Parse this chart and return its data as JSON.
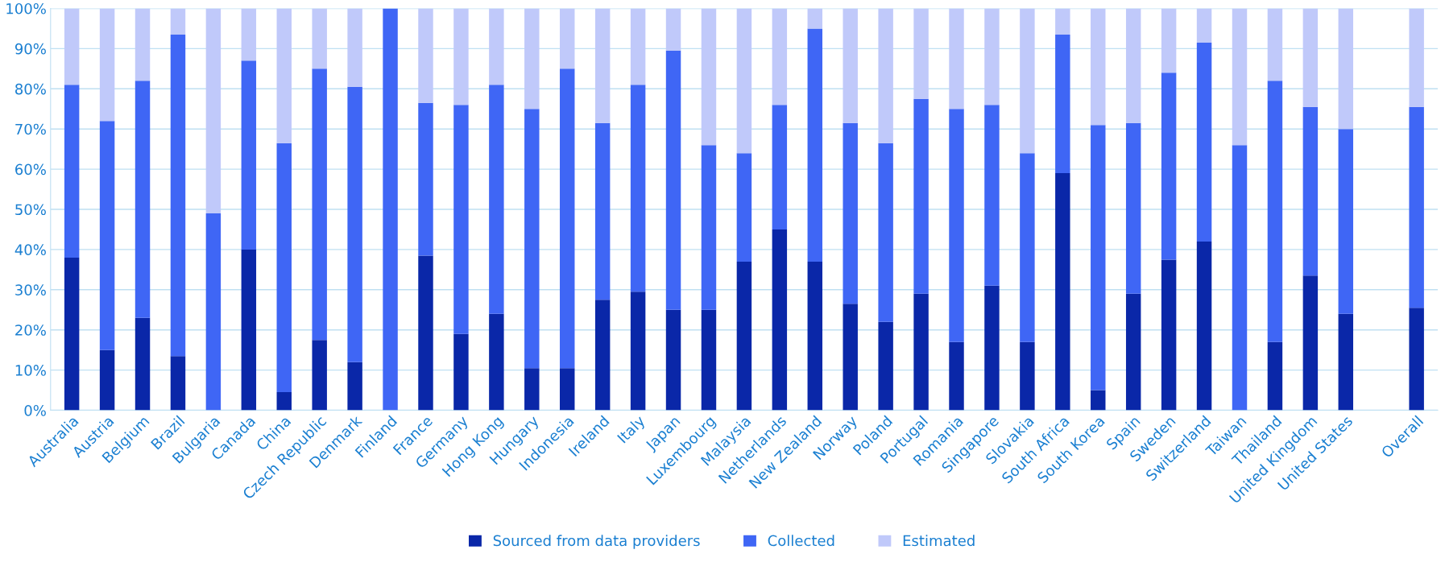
{
  "chart_data": {
    "type": "bar",
    "stacked": true,
    "categories": [
      "Australia",
      "Austria",
      "Belgium",
      "Brazil",
      "Bulgaria",
      "Canada",
      "China",
      "Czech Republic",
      "Denmark",
      "Finland",
      "France",
      "Germany",
      "Hong Kong",
      "Hungary",
      "Indonesia",
      "Ireland",
      "Italy",
      "Japan",
      "Luxembourg",
      "Malaysia",
      "Netherlands",
      "New Zealand",
      "Norway",
      "Poland",
      "Portugal",
      "Romania",
      "Singapore",
      "Slovakia",
      "South Africa",
      "South Korea",
      "Spain",
      "Sweden",
      "Switzerland",
      "Taiwan",
      "Thailand",
      "United Kingdom",
      "United States",
      null,
      "Overall"
    ],
    "series": [
      {
        "name": "Sourced from data providers",
        "color": "#0a27a8",
        "values": [
          38,
          15,
          23,
          13.5,
          0,
          40,
          4.5,
          17.5,
          12,
          0,
          38.5,
          19,
          24,
          10.5,
          10.5,
          27.5,
          29.5,
          25,
          25,
          37,
          45,
          37,
          26.5,
          22,
          29,
          17,
          31,
          17,
          59,
          5,
          29,
          37.5,
          42,
          0,
          17,
          33.5,
          24,
          null,
          25.5
        ]
      },
      {
        "name": "Collected",
        "color": "#3f66f5",
        "values": [
          43,
          57,
          59,
          80,
          49,
          47,
          62,
          67.5,
          68.5,
          100,
          38,
          57,
          57,
          64.5,
          74.5,
          44,
          51.5,
          64.5,
          41,
          27,
          31,
          58,
          45,
          44.5,
          48.5,
          58,
          45,
          47,
          34.5,
          66,
          42.5,
          46.5,
          49.5,
          66,
          65,
          42,
          46,
          null,
          50
        ]
      },
      {
        "name": "Estimated",
        "color": "#c0c9fa",
        "values": [
          19,
          28,
          18,
          6.5,
          51,
          13,
          33.5,
          15,
          19.5,
          0,
          23.5,
          24,
          19,
          25,
          15,
          28.5,
          19,
          10.5,
          34,
          36,
          24,
          5,
          28.5,
          33.5,
          22.5,
          25,
          24,
          36,
          6.5,
          29,
          28.5,
          16,
          8.5,
          34,
          18,
          24.5,
          30,
          null,
          24.5
        ]
      }
    ],
    "ylim": [
      0,
      100
    ],
    "yticks": [
      {
        "value": 0,
        "label": "0%"
      },
      {
        "value": 10,
        "label": "10%"
      },
      {
        "value": 20,
        "label": "20%"
      },
      {
        "value": 30,
        "label": "30%"
      },
      {
        "value": 40,
        "label": "40%"
      },
      {
        "value": 50,
        "label": "50%"
      },
      {
        "value": 60,
        "label": "60%"
      },
      {
        "value": 70,
        "label": "70%"
      },
      {
        "value": 80,
        "label": "80%"
      },
      {
        "value": 90,
        "label": "90%"
      },
      {
        "value": 100,
        "label": "100%"
      }
    ],
    "grid": "y",
    "legend": "bottom"
  }
}
